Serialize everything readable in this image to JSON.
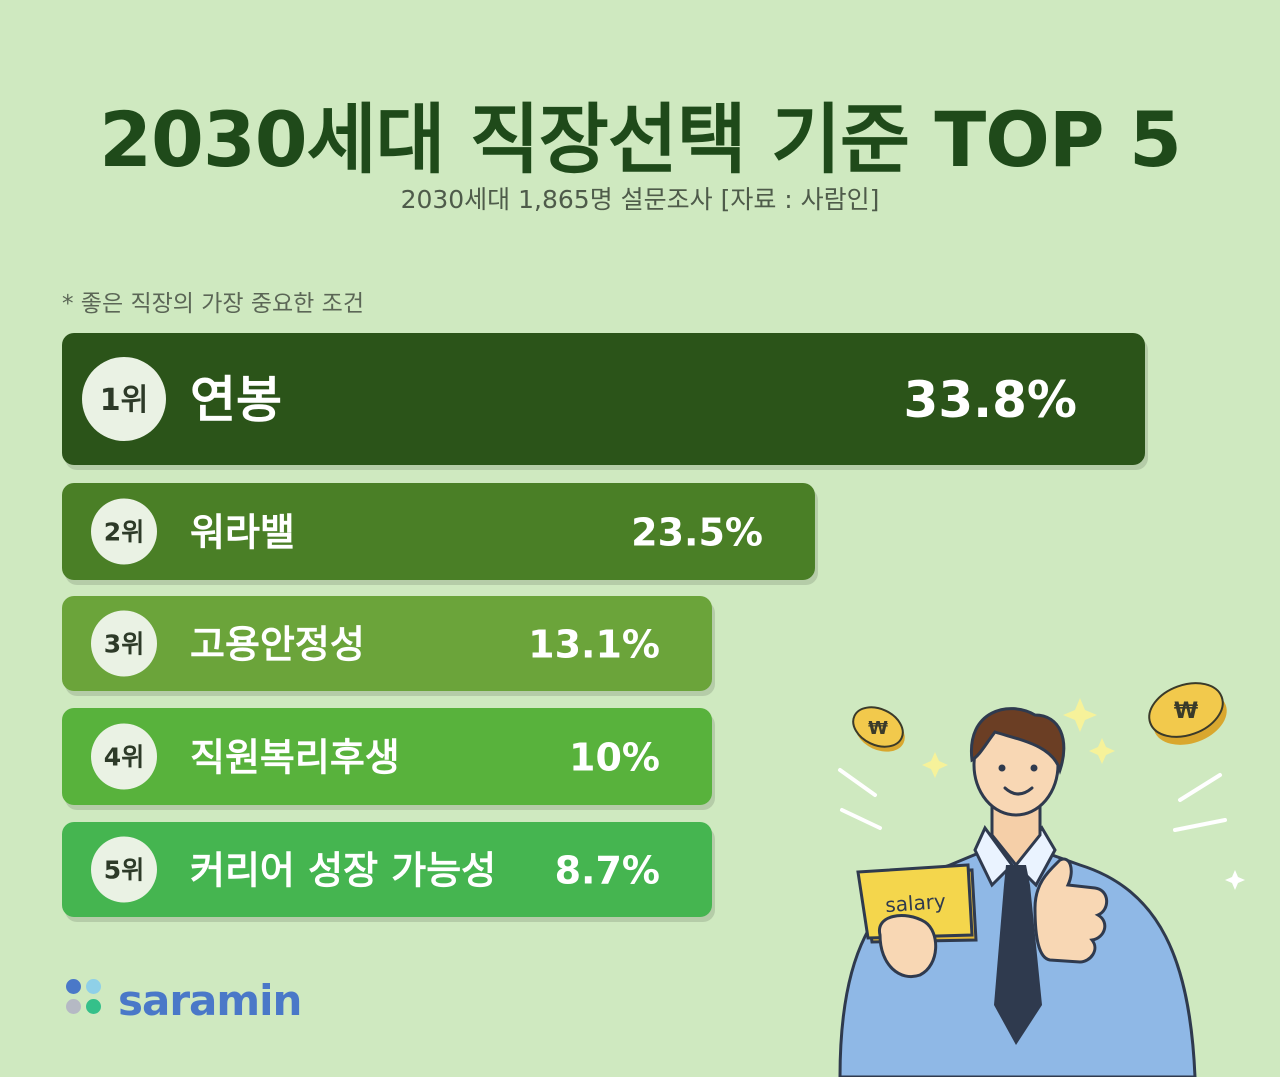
{
  "header": {
    "title": "2030세대 직장선택 기준 TOP 5",
    "subtitle": "2030세대 1,865명 설문조사 [자료 : 사람인]",
    "note": "* 좋은 직장의 가장 중요한 조건"
  },
  "chart_data": {
    "type": "bar",
    "orientation": "horizontal",
    "title": "2030세대 직장선택 기준 TOP 5",
    "categories": [
      "연봉",
      "워라밸",
      "고용안정성",
      "직원복리후생",
      "커리어 성장 가능성"
    ],
    "ranks": [
      "1위",
      "2위",
      "3위",
      "4위",
      "5위"
    ],
    "values": [
      33.8,
      23.5,
      13.1,
      10,
      8.7
    ],
    "value_labels": [
      "33.8%",
      "23.5%",
      "13.1%",
      "10%",
      "8.7%"
    ],
    "unit": "%",
    "bar_colors": [
      "#2b5419",
      "#4a7f26",
      "#6ba43a",
      "#58b23c",
      "#45b550"
    ],
    "grid": false,
    "legend": "none"
  },
  "illustration": {
    "card_text": "salary",
    "coin_symbol": "₩",
    "colors": {
      "shirt": "#8fb8e6",
      "tie": "#2f3a4e",
      "coin": "#f2c94c",
      "card": "#f4d64c"
    }
  },
  "brand": {
    "name": "saramin",
    "color": "#4a78c8",
    "dot_colors": [
      "#4a78c8",
      "#8fd0e8",
      "#b5b9c4",
      "#35c08a"
    ]
  }
}
